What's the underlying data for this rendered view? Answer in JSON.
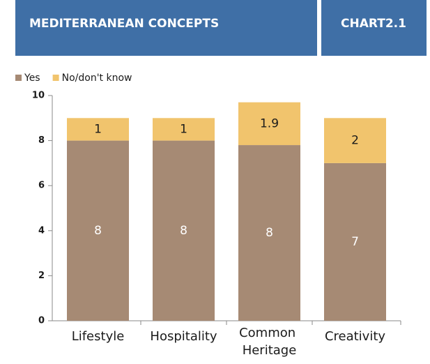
{
  "chart_data": {
    "type": "stacked_bar",
    "header": "MEDITERRANEAN CONCEPTS",
    "chart_id": "CHART2.1",
    "categories": [
      "Lifestyle",
      "Hospitality",
      "Common Heritage",
      "Creativity"
    ],
    "series": [
      {
        "name": "Yes",
        "color": "#a68a74",
        "values": [
          8,
          8,
          7.8,
          7
        ],
        "value_labels": [
          "8",
          "8",
          "8",
          "7"
        ],
        "label_color": "#ffffff"
      },
      {
        "name": "No/don't know",
        "color": "#f1c46d",
        "values": [
          1,
          1,
          1.9,
          2
        ],
        "label_color": "#1a1a1a"
      }
    ],
    "ylim": [
      0,
      10
    ],
    "yticks": [
      0,
      2,
      4,
      6,
      8,
      10
    ],
    "legend": "top-left"
  }
}
